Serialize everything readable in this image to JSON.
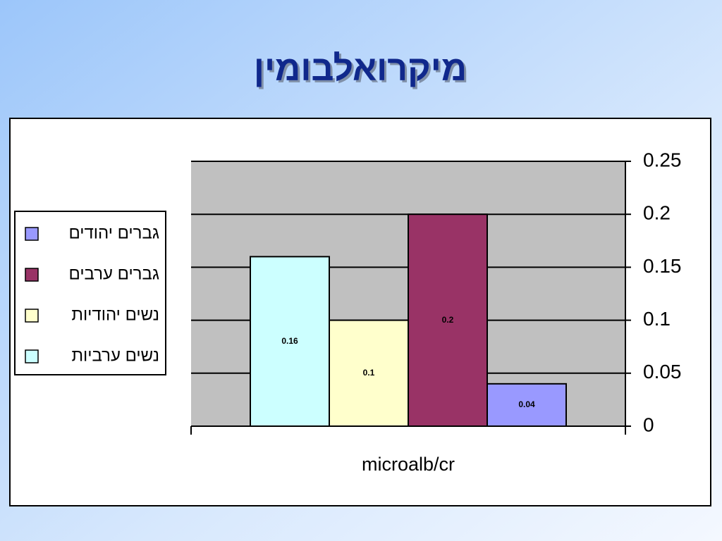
{
  "chart_data": {
    "type": "bar",
    "title": "מיקרואלבומין",
    "categories": [
      "microalb/cr"
    ],
    "series": [
      {
        "name": "גברים יהודים",
        "color": "#9999ff",
        "values": [
          0.04
        ]
      },
      {
        "name": "גברים ערבים",
        "color": "#993366",
        "values": [
          0.2
        ]
      },
      {
        "name": "נשים יהודיות",
        "color": "#ffffcc",
        "values": [
          0.1
        ]
      },
      {
        "name": "נשים ערביות",
        "color": "#ccffff",
        "values": [
          0.16
        ]
      }
    ],
    "ylim": [
      0,
      0.25
    ],
    "yticks": [
      0,
      0.05,
      0.1,
      0.15,
      0.2,
      0.25
    ],
    "grid": true,
    "legend": "left"
  }
}
